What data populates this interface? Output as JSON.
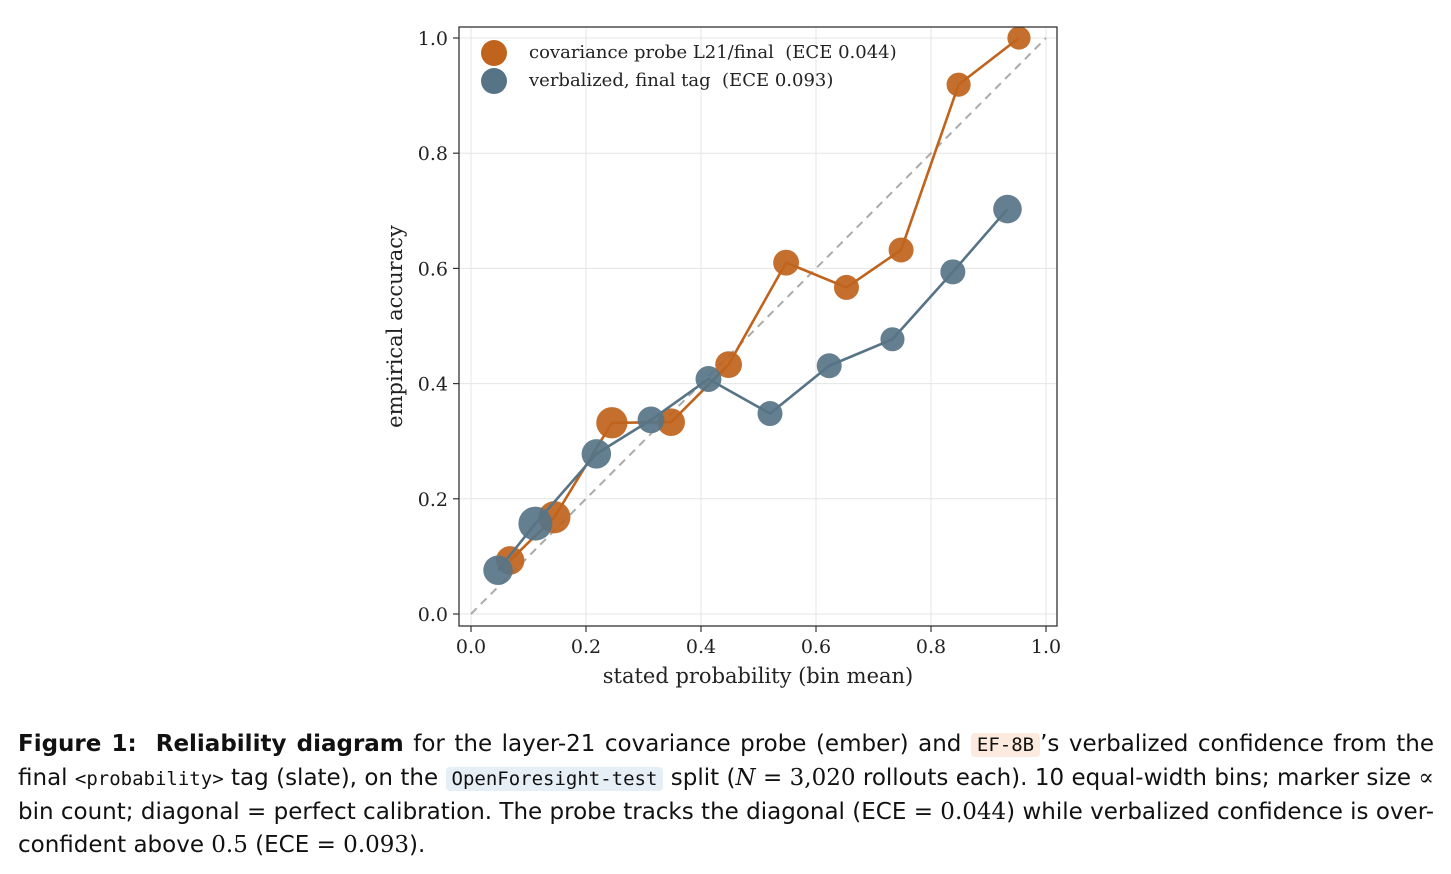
{
  "chart_data": {
    "type": "scatter",
    "xlabel": "stated probability (bin mean)",
    "ylabel": "empirical accuracy",
    "xlim": [
      0.0,
      1.0
    ],
    "ylim": [
      0.0,
      1.0
    ],
    "xticks": [
      "0.0",
      "0.2",
      "0.4",
      "0.6",
      "0.8",
      "1.0"
    ],
    "yticks": [
      "0.0",
      "0.2",
      "0.4",
      "0.6",
      "0.8",
      "1.0"
    ],
    "grid": true,
    "diagonal": "perfect calibration",
    "legend_position": "top-left",
    "series": [
      {
        "name": "covariance probe L21/final  (ECE 0.044)",
        "color": "#c0631c",
        "x": [
          0.068,
          0.145,
          0.245,
          0.348,
          0.448,
          0.548,
          0.653,
          0.748,
          0.848,
          0.953
        ],
        "y": [
          0.093,
          0.168,
          0.332,
          0.333,
          0.433,
          0.61,
          0.567,
          0.632,
          0.919,
          1.0
        ],
        "relative_size": [
          0.7,
          0.9,
          0.85,
          0.65,
          0.6,
          0.55,
          0.5,
          0.5,
          0.45,
          0.4
        ]
      },
      {
        "name": "verbalized, final tag  (ECE 0.093)",
        "color": "#577487",
        "x": [
          0.047,
          0.112,
          0.218,
          0.313,
          0.413,
          0.52,
          0.623,
          0.733,
          0.838,
          0.933
        ],
        "y": [
          0.076,
          0.157,
          0.278,
          0.337,
          0.408,
          0.348,
          0.431,
          0.477,
          0.594,
          0.703
        ],
        "relative_size": [
          0.75,
          1.0,
          0.75,
          0.6,
          0.55,
          0.5,
          0.5,
          0.45,
          0.5,
          0.7
        ]
      }
    ]
  },
  "caption": {
    "label": "Figure 1:",
    "bold_title": "Reliability diagram",
    "t1": " for the layer-21 covariance probe (ember) and ",
    "code1": "EF-8B",
    "t2": "’s verbalized confidence from the final ",
    "code2": "<probability>",
    "t3": " tag (slate), on the ",
    "code3": "OpenForesight-test",
    "t4": " split (",
    "math_n": "N",
    "math_eq1": " = 3,020",
    "t5": " rollouts each). 10 equal-width bins; marker size ",
    "prop": "∝",
    "t6": " bin count; diagonal ",
    "eq": "=",
    "t7": " perfect calibration. The probe tracks the diagonal (ECE ",
    "eq2": "=",
    "val1": " 0.044",
    "t8": ") while verbalized confidence is over-confident above ",
    "val2": "0.5",
    "t9": " (ECE ",
    "eq3": "=",
    "val3": " 0.093",
    "t10": ")."
  }
}
